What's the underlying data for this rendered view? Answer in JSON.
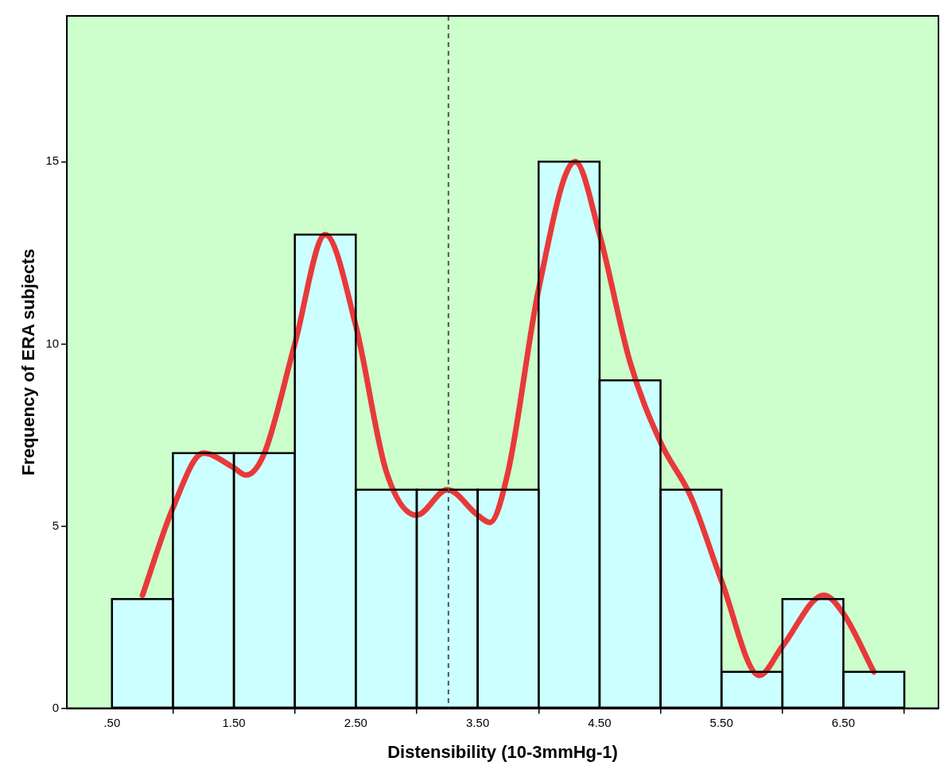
{
  "chart_data": {
    "type": "histogram",
    "xlabel": "Distensibility (10-3mmHg-1)",
    "ylabel": "Frequency of ERA subjects",
    "bins": [
      0.5,
      1.0,
      1.5,
      2.0,
      2.5,
      3.0,
      3.5,
      4.0,
      4.5,
      5.0,
      5.5,
      6.0,
      6.5,
      7.0
    ],
    "values": [
      3,
      7,
      7,
      13,
      6,
      6,
      6,
      15,
      9,
      6,
      1,
      3,
      1
    ],
    "color": "#ccffff",
    "xlim": [
      0.13,
      7.28
    ],
    "ylim": [
      0,
      19
    ],
    "xticks": [
      {
        "value": 0.5,
        "label": ".50"
      },
      {
        "value": 1.5,
        "label": "1.50"
      },
      {
        "value": 2.5,
        "label": "2.50"
      },
      {
        "value": 3.5,
        "label": "3.50"
      },
      {
        "value": 4.5,
        "label": "4.50"
      },
      {
        "value": 5.5,
        "label": "5.50"
      },
      {
        "value": 6.5,
        "label": "6.50"
      }
    ],
    "yticks": [
      0,
      5,
      10,
      15
    ],
    "grid": false,
    "legend": false,
    "series": [
      {
        "type": "line",
        "color": "#e8393a",
        "x": [
          0.75,
          1.0,
          1.25,
          1.5,
          1.6,
          1.75,
          2.0,
          2.25,
          2.5,
          2.75,
          3.0,
          3.25,
          3.5,
          3.6,
          3.75,
          4.0,
          4.3,
          4.5,
          4.75,
          5.0,
          5.25,
          5.5,
          5.81,
          6.0,
          6.34,
          6.5,
          6.75
        ],
        "values": [
          3.1,
          5.5,
          7.0,
          6.6,
          6.4,
          7.0,
          10.0,
          13.0,
          10.5,
          6.5,
          5.3,
          6.0,
          5.3,
          5.1,
          6.5,
          11.5,
          15.0,
          13.0,
          9.5,
          7.3,
          5.8,
          3.5,
          0.9,
          1.7,
          3.1,
          2.6,
          1.0
        ]
      }
    ],
    "ref_lines": [
      {
        "axis": "x",
        "value": 3.26,
        "line_style": "dashed",
        "color": "#555555"
      }
    ]
  }
}
